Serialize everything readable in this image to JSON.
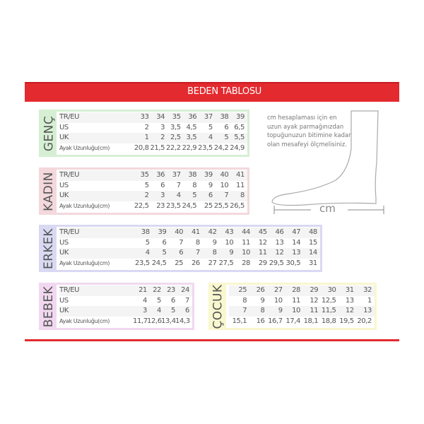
{
  "title": "BEDEN TABLOSU",
  "row_labels": [
    "TR/EU",
    "US",
    "UK",
    "Ayak Uzunluğu(cm)"
  ],
  "tables": [
    {
      "name": "GENÇ",
      "color": "#d6efd3",
      "rows": [
        [
          "33",
          "34",
          "35",
          "36",
          "37",
          "38",
          "39"
        ],
        [
          "2",
          "3",
          "3,5",
          "4,5",
          "5",
          "6",
          "6,5"
        ],
        [
          "1",
          "2",
          "2,5",
          "3,5",
          "4",
          "5",
          "5,5"
        ],
        [
          "20,8",
          "21,5",
          "22,2",
          "22,9",
          "23,5",
          "24,2",
          "24,9"
        ]
      ]
    },
    {
      "name": "KADIN",
      "color": "#f3d8dc",
      "rows": [
        [
          "35",
          "36",
          "37",
          "38",
          "39",
          "40",
          "41"
        ],
        [
          "5",
          "6",
          "7",
          "8",
          "9",
          "10",
          "11"
        ],
        [
          "2",
          "3",
          "4",
          "5",
          "6",
          "7",
          "8"
        ],
        [
          "22,5",
          "23",
          "23,5",
          "24,5",
          "25",
          "25,5",
          "26,5"
        ]
      ]
    },
    {
      "name": "ERKEK",
      "color": "#d9d9f3",
      "rows": [
        [
          "38",
          "39",
          "40",
          "41",
          "42",
          "43",
          "44",
          "45",
          "46",
          "47",
          "48"
        ],
        [
          "5",
          "6",
          "7",
          "8",
          "9",
          "10",
          "11",
          "12",
          "13",
          "14",
          "15"
        ],
        [
          "4",
          "5",
          "6",
          "7",
          "8",
          "9",
          "10",
          "11",
          "12",
          "13",
          "14"
        ],
        [
          "23,5",
          "24,5",
          "25",
          "26",
          "27",
          "27,5",
          "28",
          "29",
          "29,5",
          "30,5",
          "31"
        ]
      ]
    },
    {
      "name": "BEBEK",
      "color": "#f1d8f0",
      "rows": [
        [
          "21",
          "22",
          "23",
          "24"
        ],
        [
          "4",
          "5",
          "6",
          "7"
        ],
        [
          "3",
          "4",
          "5",
          "6"
        ],
        [
          "11,7",
          "12,6",
          "13,4",
          "14,3"
        ]
      ]
    },
    {
      "name": "ÇOCUK",
      "color": "#f8f7cf",
      "rows": [
        [
          "25",
          "26",
          "27",
          "28",
          "29",
          "30",
          "31",
          "32"
        ],
        [
          "8",
          "9",
          "10",
          "11",
          "12",
          "12,5",
          "13",
          "1"
        ],
        [
          "7",
          "8",
          "9",
          "10",
          "11",
          "11,5",
          "12",
          "13"
        ],
        [
          "15,1",
          "16",
          "16,7",
          "17,4",
          "18,1",
          "18,8",
          "19,5",
          "20,2"
        ]
      ]
    }
  ],
  "note": "cm hesaplaması için en uzun ayak parmağınızdan topuğunuzun bitimine kadar olan mesafeyi ölçmelisiniz.",
  "measure_label": "cm",
  "accent": "#e32a2e"
}
